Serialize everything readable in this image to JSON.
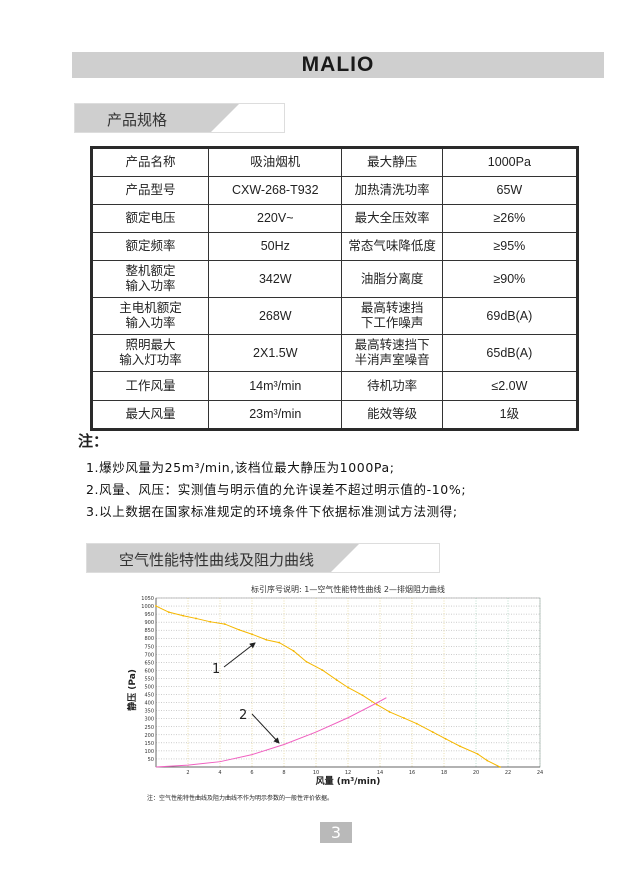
{
  "header": {
    "logo": "MALIO"
  },
  "spec_section": {
    "title": "产品规格"
  },
  "spec_table": [
    [
      "产品名称",
      "吸油烟机",
      "最大静压",
      "1000Pa"
    ],
    [
      "产品型号",
      "CXW-268-T932",
      "加热清洗功率",
      "65W"
    ],
    [
      "额定电压",
      "220V~",
      "最大全压效率",
      "≥26%"
    ],
    [
      "额定频率",
      "50Hz",
      "常态气味降低度",
      "≥95%"
    ],
    [
      "整机额定\n输入功率",
      "342W",
      "油脂分离度",
      "≥90%"
    ],
    [
      "主电机额定\n输入功率",
      "268W",
      "最高转速挡\n下工作噪声",
      "69dB(A)"
    ],
    [
      "照明最大\n输入灯功率",
      "2X1.5W",
      "最高转速挡下\n半消声室噪音",
      "65dB(A)"
    ],
    [
      "工作风量",
      "14m³/min",
      "待机功率",
      "≤2.0W"
    ],
    [
      "最大风量",
      "23m³/min",
      "能效等级",
      "1级"
    ]
  ],
  "notes": {
    "heading": "注：",
    "items": [
      "1.爆炒风量为25m³/min,该档位最大静压为1000Pa;",
      "2.风量、风压：实测值与明示值的允许误差不超过明示值的-10%;",
      "3.以上数据在国家标准规定的环境条件下依据标准测试方法测得;"
    ]
  },
  "curve_section": {
    "title": "空气性能特性曲线及阻力曲线"
  },
  "chart_data": {
    "type": "line",
    "title": "标引序号说明: 1—空气性能特性曲线  2—排烟阻力曲线",
    "xlabel": "风量 (m³/min)",
    "ylabel": "静压 (Pa)",
    "xlim": [
      0,
      24
    ],
    "ylim": [
      0,
      1050
    ],
    "xticks": [
      "2",
      "4",
      "6",
      "8",
      "10",
      "12",
      "14",
      "16",
      "18",
      "20",
      "22",
      "24"
    ],
    "yticks": [
      "50",
      "100",
      "150",
      "200",
      "250",
      "300",
      "350",
      "400",
      "450",
      "500",
      "550",
      "600",
      "650",
      "700",
      "750",
      "800",
      "850",
      "900",
      "950",
      "1000",
      "1050"
    ],
    "grid": true,
    "series": [
      {
        "name": "1",
        "color": "#f5b700",
        "x": [
          0,
          0.8,
          1.7,
          2.5,
          3.4,
          4.3,
          5.2,
          6,
          6.9,
          7.7,
          8.6,
          9.4,
          10.4,
          11.3,
          12,
          12.9,
          13.8,
          14.6,
          15.5,
          16.3,
          17.3,
          18.1,
          19,
          20.1,
          20.7,
          21.5
        ],
        "y": [
          1000,
          962,
          940,
          923,
          902,
          888,
          852,
          825,
          790,
          773,
          721,
          654,
          602,
          540,
          494,
          446,
          388,
          342,
          304,
          269,
          217,
          175,
          129,
          81,
          40,
          0
        ]
      },
      {
        "name": "2",
        "color": "#f060c0",
        "x": [
          0,
          2,
          4,
          6,
          8,
          10,
          12,
          13.8,
          14.4
        ],
        "y": [
          0,
          12,
          33,
          77,
          140,
          217,
          306,
          398,
          431
        ]
      }
    ],
    "annotations": [
      "1",
      "2"
    ],
    "footnote": "注：空气性能特性曲线及阻力曲线不作为明示参数的一般性评价依据。"
  },
  "page": {
    "number": "3"
  }
}
